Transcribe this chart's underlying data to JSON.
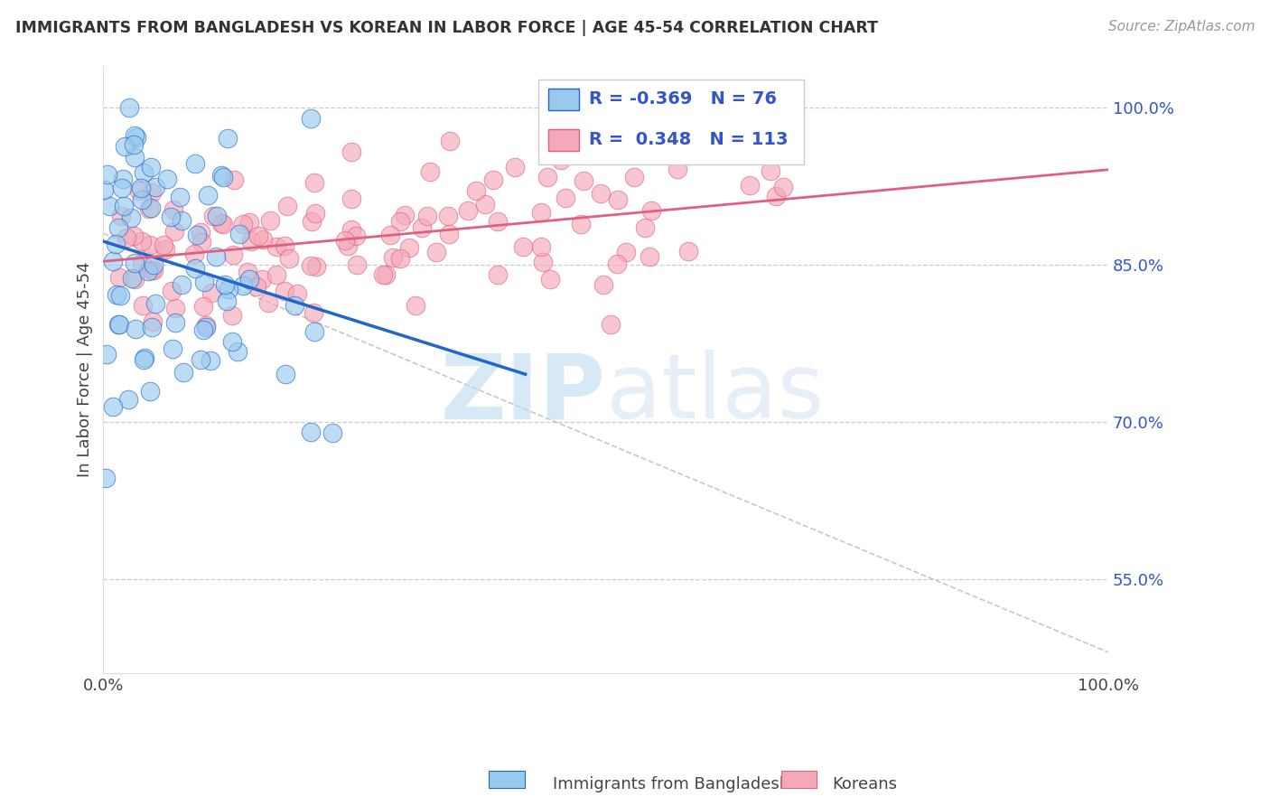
{
  "title": "IMMIGRANTS FROM BANGLADESH VS KOREAN IN LABOR FORCE | AGE 45-54 CORRELATION CHART",
  "source": "Source: ZipAtlas.com",
  "ylabel": "In Labor Force | Age 45-54",
  "legend_labels": [
    "Immigrants from Bangladesh",
    "Koreans"
  ],
  "R_bangladesh": -0.369,
  "N_bangladesh": 76,
  "R_korean": 0.348,
  "N_korean": 113,
  "color_bangladesh": "#99CAEE",
  "color_korean": "#F4A8B8",
  "color_trend_bangladesh": "#2266CC",
  "color_trend_korean": "#E06080",
  "xlim": [
    0.0,
    1.0
  ],
  "ylim": [
    0.46,
    1.04
  ],
  "yticks": [
    0.55,
    0.7,
    0.85,
    1.0
  ],
  "ytick_labels": [
    "55.0%",
    "70.0%",
    "85.0%",
    "100.0%"
  ],
  "xtick_labels": [
    "0.0%",
    "100.0%"
  ],
  "watermark_zip": "ZIP",
  "watermark_atlas": "atlas",
  "background_color": "#ffffff",
  "grid_color": "#c8c8c8",
  "stat_color": "#3355CC"
}
